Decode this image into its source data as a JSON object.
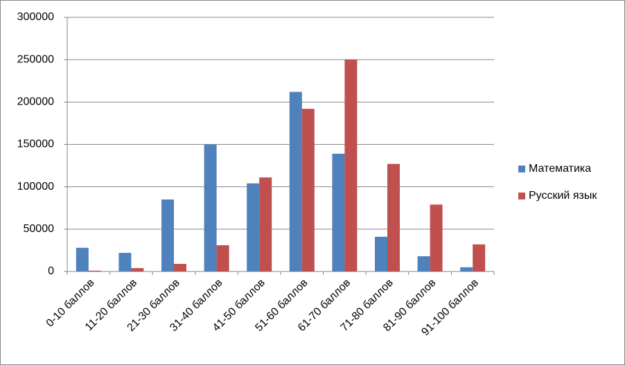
{
  "chart_data": {
    "type": "bar",
    "categories": [
      "0-10 баллов",
      "11-20 баллов",
      "21-30 баллов",
      "31-40 баллов",
      "41-50 баллов",
      "51-60 баллов",
      "61-70 баллов",
      "71-80 баллов",
      "81-90 баллов",
      "91-100 баллов"
    ],
    "series": [
      {
        "name": "Математика",
        "color": "#4f81bd",
        "values": [
          28000,
          22000,
          85000,
          150000,
          104000,
          212000,
          139000,
          41000,
          18000,
          5000
        ]
      },
      {
        "name": "Русский язык",
        "color": "#c0504d",
        "values": [
          1000,
          4000,
          9000,
          31000,
          111000,
          192000,
          250000,
          127000,
          79000,
          32000
        ]
      }
    ],
    "ylim": [
      0,
      300000
    ],
    "yticks": [
      0,
      50000,
      100000,
      150000,
      200000,
      250000,
      300000
    ],
    "grid": true,
    "legend": "right"
  }
}
